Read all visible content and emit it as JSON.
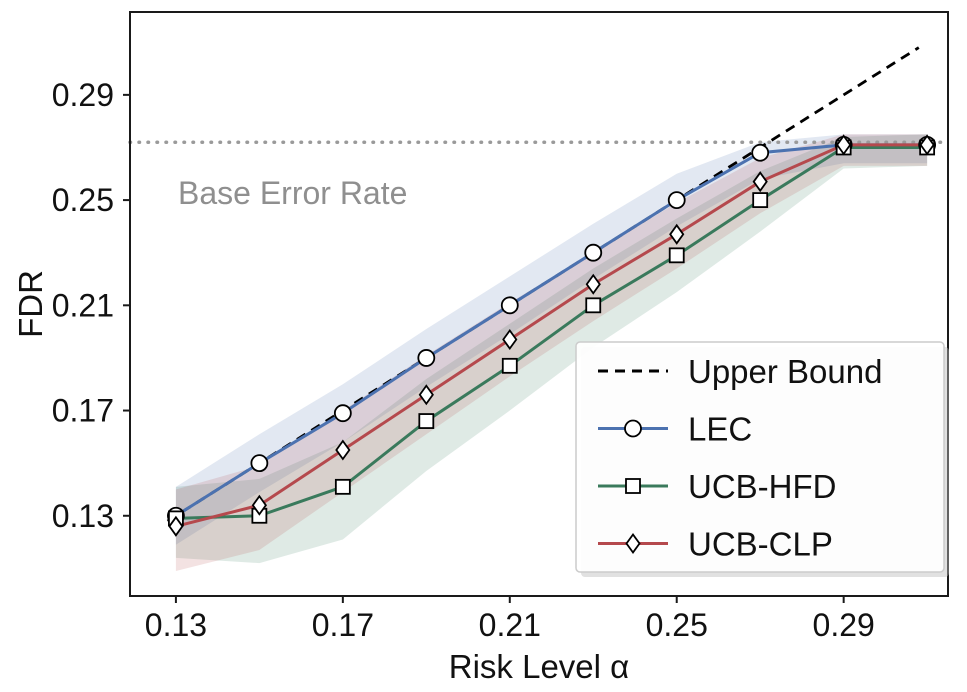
{
  "chart_data": {
    "type": "line",
    "title": "",
    "xlabel": "Risk Level α",
    "ylabel": "FDR",
    "x": [
      0.13,
      0.15,
      0.17,
      0.19,
      0.21,
      0.23,
      0.25,
      0.27,
      0.29,
      0.31
    ],
    "x_ticks": [
      0.13,
      0.17,
      0.21,
      0.25,
      0.29
    ],
    "y_ticks": [
      0.13,
      0.17,
      0.21,
      0.25,
      0.29
    ],
    "x_tick_labels": [
      "0.13",
      "0.17",
      "0.21",
      "0.25",
      "0.29"
    ],
    "y_tick_labels": [
      "0.13",
      "0.17",
      "0.21",
      "0.25",
      "0.29"
    ],
    "xlim": [
      0.119,
      0.315
    ],
    "ylim": [
      0.0995,
      0.3215
    ],
    "grid": false,
    "base_error_rate": {
      "value": 0.272,
      "color": "#9a9a9a"
    },
    "annotation": {
      "text": "Base Error Rate",
      "x": 0.1305,
      "y": 0.2485,
      "color": "#8f8f8f"
    },
    "upper_bound": {
      "label": "Upper Bound",
      "color": "#000000",
      "x": [
        0.128,
        0.308
      ],
      "y": [
        0.128,
        0.308
      ]
    },
    "series": [
      {
        "name": "LEC",
        "color": "#4c72b0",
        "marker": "circle",
        "values": [
          0.13,
          0.15,
          0.169,
          0.19,
          0.21,
          0.23,
          0.25,
          0.268,
          0.271,
          0.271
        ],
        "band_lower": [
          0.119,
          0.139,
          0.158,
          0.179,
          0.199,
          0.22,
          0.24,
          0.258,
          0.264,
          0.264
        ],
        "band_upper": [
          0.141,
          0.161,
          0.18,
          0.201,
          0.221,
          0.241,
          0.26,
          0.272,
          0.275,
          0.275
        ]
      },
      {
        "name": "UCB-HFD",
        "color": "#3a7a5c",
        "marker": "square",
        "values": [
          0.129,
          0.13,
          0.141,
          0.166,
          0.187,
          0.21,
          0.229,
          0.25,
          0.27,
          0.27
        ],
        "band_lower": [
          0.114,
          0.112,
          0.121,
          0.147,
          0.17,
          0.194,
          0.215,
          0.238,
          0.262,
          0.263
        ],
        "band_upper": [
          0.141,
          0.144,
          0.158,
          0.182,
          0.203,
          0.224,
          0.243,
          0.261,
          0.274,
          0.275
        ]
      },
      {
        "name": "UCB-CLP",
        "color": "#b5494d",
        "marker": "diamond",
        "values": [
          0.126,
          0.134,
          0.155,
          0.176,
          0.197,
          0.218,
          0.237,
          0.257,
          0.271,
          0.271
        ],
        "band_lower": [
          0.109,
          0.117,
          0.139,
          0.161,
          0.183,
          0.204,
          0.224,
          0.245,
          0.263,
          0.263
        ],
        "band_upper": [
          0.14,
          0.149,
          0.17,
          0.191,
          0.211,
          0.23,
          0.249,
          0.266,
          0.275,
          0.275
        ]
      }
    ],
    "band_opacity": 0.16,
    "legend": {
      "position": "lower right"
    }
  }
}
